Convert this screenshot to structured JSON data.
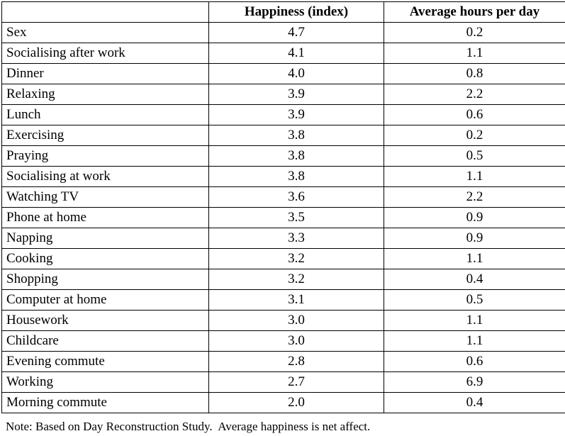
{
  "table": {
    "columns": [
      "",
      "Happiness (index)",
      "Average hours per day"
    ],
    "rows": [
      {
        "activity": "Sex",
        "happiness": "4.7",
        "hours": "0.2"
      },
      {
        "activity": "Socialising after work",
        "happiness": "4.1",
        "hours": "1.1"
      },
      {
        "activity": "Dinner",
        "happiness": "4.0",
        "hours": "0.8"
      },
      {
        "activity": "Relaxing",
        "happiness": "3.9",
        "hours": "2.2"
      },
      {
        "activity": "Lunch",
        "happiness": "3.9",
        "hours": "0.6"
      },
      {
        "activity": "Exercising",
        "happiness": "3.8",
        "hours": "0.2"
      },
      {
        "activity": "Praying",
        "happiness": "3.8",
        "hours": "0.5"
      },
      {
        "activity": "Socialising at work",
        "happiness": "3.8",
        "hours": "1.1"
      },
      {
        "activity": "Watching TV",
        "happiness": "3.6",
        "hours": "2.2"
      },
      {
        "activity": "Phone at home",
        "happiness": "3.5",
        "hours": "0.9"
      },
      {
        "activity": "Napping",
        "happiness": "3.3",
        "hours": "0.9"
      },
      {
        "activity": "Cooking",
        "happiness": "3.2",
        "hours": "1.1"
      },
      {
        "activity": "Shopping",
        "happiness": "3.2",
        "hours": "0.4"
      },
      {
        "activity": "Computer at home",
        "happiness": "3.1",
        "hours": "0.5"
      },
      {
        "activity": "Housework",
        "happiness": "3.0",
        "hours": "1.1"
      },
      {
        "activity": "Childcare",
        "happiness": "3.0",
        "hours": "1.1"
      },
      {
        "activity": "Evening commute",
        "happiness": "2.8",
        "hours": "0.6"
      },
      {
        "activity": "Working",
        "happiness": "2.7",
        "hours": "6.9"
      },
      {
        "activity": "Morning commute",
        "happiness": "2.0",
        "hours": "0.4"
      }
    ]
  },
  "note": "Note: Based on Day Reconstruction Study.  Average happiness is net affect.",
  "chart_data": {
    "type": "table",
    "title": "",
    "categories": [
      "Sex",
      "Socialising after work",
      "Dinner",
      "Relaxing",
      "Lunch",
      "Exercising",
      "Praying",
      "Socialising at work",
      "Watching TV",
      "Phone at home",
      "Napping",
      "Cooking",
      "Shopping",
      "Computer at home",
      "Housework",
      "Childcare",
      "Evening commute",
      "Working",
      "Morning commute"
    ],
    "series": [
      {
        "name": "Happiness (index)",
        "values": [
          4.7,
          4.1,
          4.0,
          3.9,
          3.9,
          3.8,
          3.8,
          3.8,
          3.6,
          3.5,
          3.3,
          3.2,
          3.2,
          3.1,
          3.0,
          3.0,
          2.8,
          2.7,
          2.0
        ]
      },
      {
        "name": "Average hours per day",
        "values": [
          0.2,
          1.1,
          0.8,
          2.2,
          0.6,
          0.2,
          0.5,
          1.1,
          2.2,
          0.9,
          0.9,
          1.1,
          0.4,
          0.5,
          1.1,
          1.1,
          0.6,
          6.9,
          0.4
        ]
      }
    ],
    "annotations": [
      "Note: Based on Day Reconstruction Study.  Average happiness is net affect."
    ]
  }
}
